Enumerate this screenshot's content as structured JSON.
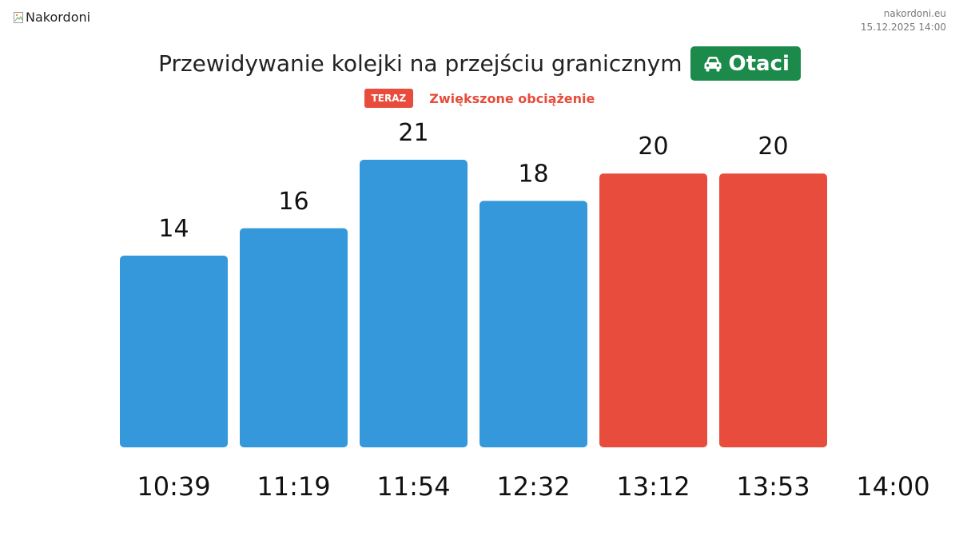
{
  "header": {
    "logo_alt": "Nakordoni",
    "site": "nakordoni.eu",
    "datetime": "15.12.2025 14:00"
  },
  "title": {
    "text": "Przewidywanie kolejki na przejściu granicznym",
    "crossing": "Otaci",
    "crossing_icon": "car-icon",
    "crossing_color": "#1b8a4b"
  },
  "status": {
    "badge": "TERAZ",
    "text": "Zwiększone obciążenie",
    "color": "#e74c3c"
  },
  "chart_data": {
    "type": "bar",
    "categories": [
      "10:39",
      "11:19",
      "11:54",
      "12:32",
      "13:12",
      "13:53",
      "14:00"
    ],
    "values": [
      14,
      16,
      21,
      18,
      20,
      20,
      null
    ],
    "colors": [
      "#3498db",
      "#3498db",
      "#3498db",
      "#3498db",
      "#e74c3c",
      "#e74c3c",
      null
    ],
    "title": "Przewidywanie kolejki na przejściu granicznym",
    "xlabel": "",
    "ylabel": "",
    "ylim": [
      0,
      21
    ],
    "grid": false,
    "legend": "none"
  }
}
